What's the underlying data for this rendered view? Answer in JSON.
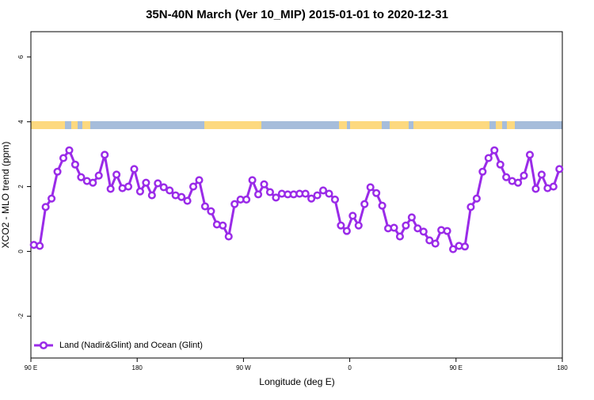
{
  "chart_data": {
    "type": "line",
    "title": "35N-40N March (Ver 10_MIP)   2015-01-01 to 2020-12-31",
    "x_label": "Longitude (deg E)",
    "y_label": "XCO2 - MLO trend (ppm)",
    "x": [
      92.5,
      97.5,
      102.5,
      107.5,
      112.5,
      117.5,
      122.5,
      127.5,
      132.5,
      137.5,
      142.5,
      147.5,
      152.5,
      157.5,
      162.5,
      167.5,
      172.5,
      177.5,
      182.5,
      187.5,
      192.5,
      197.5,
      202.5,
      207.5,
      212.5,
      217.5,
      222.5,
      227.5,
      232.5,
      237.5,
      242.5,
      247.5,
      252.5,
      257.5,
      262.5,
      267.5,
      272.5,
      277.5,
      282.5,
      287.5,
      292.5,
      297.5,
      302.5,
      307.5,
      312.5,
      317.5,
      322.5,
      327.5,
      332.5,
      337.5,
      342.5,
      347.5,
      352.5,
      357.5,
      362.5,
      367.5,
      372.5,
      377.5,
      382.5,
      387.5,
      392.5,
      397.5,
      402.5,
      407.5,
      412.5,
      417.5,
      422.5,
      427.5,
      432.5,
      437.5,
      442.5,
      447.5,
      452.5,
      457.5,
      462.5,
      467.5,
      472.5,
      477.5,
      482.5,
      487.5,
      492.5,
      497.5,
      502.5,
      507.5,
      512.5,
      517.5,
      522.5,
      527.5,
      532.5,
      537.5
    ],
    "series": [
      {
        "name": "Land (Nadir&Glint) and Ocean (Glint)",
        "color": "#9a2be8",
        "values": [
          0.2,
          0.17,
          1.37,
          1.63,
          2.46,
          2.88,
          3.12,
          2.68,
          2.29,
          2.17,
          2.12,
          2.34,
          2.98,
          1.93,
          2.37,
          1.95,
          2.0,
          2.54,
          1.85,
          2.12,
          1.73,
          2.1,
          1.98,
          1.88,
          1.73,
          1.68,
          1.56,
          2.0,
          2.2,
          1.39,
          1.24,
          0.83,
          0.8,
          0.46,
          1.46,
          1.6,
          1.6,
          2.2,
          1.76,
          2.07,
          1.83,
          1.66,
          1.78,
          1.76,
          1.76,
          1.78,
          1.78,
          1.63,
          1.73,
          1.88,
          1.78,
          1.6,
          0.8,
          0.63,
          1.1,
          0.8,
          1.46,
          1.98,
          1.8,
          1.41,
          0.71,
          0.73,
          0.46,
          0.8,
          1.05,
          0.71,
          0.61,
          0.34,
          0.24,
          0.66,
          0.63,
          0.07,
          0.17,
          0.15,
          1.37,
          1.63,
          2.46,
          2.88,
          3.12,
          2.68,
          2.29,
          2.17,
          2.12,
          2.34,
          2.98,
          1.93,
          2.37,
          1.95,
          2.0,
          2.54
        ]
      }
    ],
    "xlim": [
      90,
      540
    ],
    "xticks": [
      {
        "value": 90,
        "label": "90 E"
      },
      180,
      {
        "value": 270,
        "label": "90 W"
      },
      {
        "value": 360,
        "label": "0"
      },
      {
        "value": 450,
        "label": "90 E"
      },
      {
        "value": 540,
        "label": "180"
      }
    ],
    "ylim": [
      -3.29,
      6.78
    ],
    "yticks": [
      -2,
      0,
      2,
      4,
      6
    ],
    "legend": "bottom-left"
  }
}
